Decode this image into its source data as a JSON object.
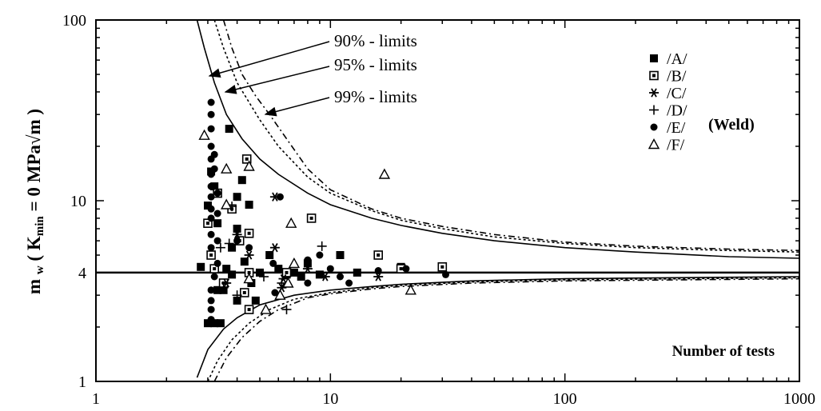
{
  "chart_data": {
    "type": "scatter",
    "xscale": "log",
    "yscale": "log",
    "xlim": [
      1,
      1000
    ],
    "ylim": [
      1,
      100
    ],
    "x_tick_labels": [
      "1",
      "10",
      "100",
      "1000"
    ],
    "y_tick_labels": [
      "1",
      "4",
      "10",
      "100"
    ],
    "y_tick_values": [
      1,
      4,
      10,
      100
    ],
    "x_tick_values": [
      1,
      10,
      100,
      1000
    ],
    "ylabel": "m w ( Kmin = 0 MPa√m )",
    "xlabel_annotation": "Number of tests",
    "group_label": "(Weld)",
    "horizontal_line": 4,
    "limit_labels": [
      "90% - limits",
      "95% - limits",
      "99% - limits"
    ],
    "legend": [
      {
        "label": "/A/",
        "marker": "filled-square"
      },
      {
        "label": "/B/",
        "marker": "square-dot"
      },
      {
        "label": "/C/",
        "marker": "asterisk"
      },
      {
        "label": "/D/",
        "marker": "plus"
      },
      {
        "label": "/E/",
        "marker": "filled-circle"
      },
      {
        "label": "/F/",
        "marker": "open-triangle"
      }
    ],
    "limit_curves": [
      {
        "name": "90%",
        "dash": "solid",
        "upper": [
          [
            2.7,
            100
          ],
          [
            2.9,
            70
          ],
          [
            3.2,
            45
          ],
          [
            3.6,
            30
          ],
          [
            4.2,
            22
          ],
          [
            5,
            17
          ],
          [
            6,
            14
          ],
          [
            8,
            11
          ],
          [
            10,
            9.5
          ],
          [
            15,
            8
          ],
          [
            20,
            7.3
          ],
          [
            30,
            6.6
          ],
          [
            50,
            6.0
          ],
          [
            100,
            5.5
          ],
          [
            200,
            5.2
          ],
          [
            500,
            4.9
          ],
          [
            1000,
            4.8
          ]
        ],
        "lower": [
          [
            2.7,
            1.05
          ],
          [
            3,
            1.5
          ],
          [
            3.5,
            1.95
          ],
          [
            4,
            2.25
          ],
          [
            5,
            2.65
          ],
          [
            7,
            3.0
          ],
          [
            10,
            3.2
          ],
          [
            15,
            3.35
          ],
          [
            20,
            3.45
          ],
          [
            40,
            3.6
          ],
          [
            100,
            3.7
          ],
          [
            1000,
            3.8
          ]
        ]
      },
      {
        "name": "95%",
        "dash": "3,3",
        "upper": [
          [
            3.2,
            100
          ],
          [
            3.5,
            70
          ],
          [
            4,
            45
          ],
          [
            4.5,
            35
          ],
          [
            5,
            28
          ],
          [
            6,
            20
          ],
          [
            8,
            13.5
          ],
          [
            10,
            11
          ],
          [
            15,
            8.8
          ],
          [
            20,
            7.8
          ],
          [
            30,
            7.0
          ],
          [
            50,
            6.3
          ],
          [
            100,
            5.8
          ],
          [
            200,
            5.5
          ],
          [
            500,
            5.3
          ],
          [
            1000,
            5.2
          ]
        ],
        "lower": [
          [
            3.0,
            1.0
          ],
          [
            3.3,
            1.3
          ],
          [
            3.8,
            1.7
          ],
          [
            4.5,
            2.1
          ],
          [
            5.5,
            2.5
          ],
          [
            7,
            2.85
          ],
          [
            10,
            3.1
          ],
          [
            15,
            3.3
          ],
          [
            20,
            3.4
          ],
          [
            40,
            3.55
          ],
          [
            100,
            3.65
          ],
          [
            1000,
            3.75
          ]
        ]
      },
      {
        "name": "99%",
        "dash": "8,4,2,4",
        "upper": [
          [
            3.5,
            100
          ],
          [
            3.8,
            70
          ],
          [
            4.2,
            50
          ],
          [
            4.8,
            38
          ],
          [
            5.5,
            30
          ],
          [
            6.5,
            22
          ],
          [
            8,
            15
          ],
          [
            10,
            11.5
          ],
          [
            15,
            9.0
          ],
          [
            20,
            8.0
          ],
          [
            30,
            7.2
          ],
          [
            50,
            6.5
          ],
          [
            100,
            5.9
          ],
          [
            200,
            5.6
          ],
          [
            500,
            5.4
          ],
          [
            1000,
            5.3
          ]
        ],
        "lower": [
          [
            3.2,
            1.0
          ],
          [
            3.6,
            1.35
          ],
          [
            4.2,
            1.75
          ],
          [
            5,
            2.15
          ],
          [
            6,
            2.5
          ],
          [
            8,
            2.9
          ],
          [
            10,
            3.05
          ],
          [
            15,
            3.25
          ],
          [
            20,
            3.35
          ],
          [
            40,
            3.5
          ],
          [
            100,
            3.6
          ],
          [
            1000,
            3.7
          ]
        ]
      }
    ],
    "series": [
      {
        "name": "/A/",
        "marker": "filled-square",
        "points": [
          [
            2.8,
            4.3
          ],
          [
            3,
            9.4
          ],
          [
            3.1,
            14.5
          ],
          [
            3.2,
            12
          ],
          [
            3.3,
            7.5
          ],
          [
            3,
            2.1
          ],
          [
            3.2,
            2.1
          ],
          [
            3.4,
            2.1
          ],
          [
            3.5,
            3.2
          ],
          [
            3.6,
            4.2
          ],
          [
            3.8,
            5.5
          ],
          [
            3.7,
            25
          ],
          [
            4,
            10.5
          ],
          [
            4,
            7
          ],
          [
            4.3,
            4.6
          ],
          [
            4.5,
            9.5
          ],
          [
            4.2,
            13
          ],
          [
            4.6,
            3.5
          ],
          [
            5,
            4
          ],
          [
            5.5,
            5
          ],
          [
            6,
            4.2
          ],
          [
            6.5,
            3.9
          ],
          [
            7,
            4.0
          ],
          [
            7.5,
            3.8
          ],
          [
            8,
            4.5
          ],
          [
            9,
            3.9
          ],
          [
            11,
            5.0
          ],
          [
            13,
            4.0
          ],
          [
            20,
            4.3
          ],
          [
            3.3,
            3.2
          ],
          [
            4,
            2.8
          ],
          [
            3.8,
            3.9
          ],
          [
            4.8,
            2.8
          ]
        ]
      },
      {
        "name": "/B/",
        "marker": "square-dot",
        "points": [
          [
            3,
            7.5
          ],
          [
            3.1,
            5
          ],
          [
            3.3,
            11
          ],
          [
            3.5,
            3.5
          ],
          [
            3.8,
            9
          ],
          [
            4.1,
            6
          ],
          [
            4.3,
            3.1
          ],
          [
            4.4,
            17
          ],
          [
            4.5,
            6.6
          ],
          [
            4.5,
            2.5
          ],
          [
            6.5,
            4
          ],
          [
            8.3,
            8
          ],
          [
            16,
            5
          ],
          [
            20,
            4.2
          ],
          [
            30,
            4.3
          ],
          [
            3.2,
            4.2
          ],
          [
            4.5,
            4.0
          ]
        ]
      },
      {
        "name": "/C/",
        "marker": "asterisk",
        "points": [
          [
            4,
            6.5
          ],
          [
            4.5,
            5
          ],
          [
            5.8,
            5.5
          ],
          [
            5.8,
            10.5
          ],
          [
            6.2,
            3.3
          ],
          [
            6.3,
            3.7
          ],
          [
            8,
            4.2
          ],
          [
            9.5,
            3.8
          ],
          [
            16,
            3.8
          ],
          [
            3.6,
            3.5
          ]
        ]
      },
      {
        "name": "/D/",
        "marker": "plus",
        "points": [
          [
            3.4,
            5.5
          ],
          [
            3.7,
            5.8
          ],
          [
            3.8,
            9.3
          ],
          [
            4.0,
            3.0
          ],
          [
            5.2,
            3.8
          ],
          [
            6.2,
            3.5
          ],
          [
            6.5,
            2.5
          ],
          [
            9.2,
            5.6
          ],
          [
            3.5,
            3.3
          ]
        ]
      },
      {
        "name": "/E/",
        "marker": "filled-circle",
        "points": [
          [
            3.1,
            35
          ],
          [
            3.1,
            30
          ],
          [
            3.1,
            25
          ],
          [
            3.1,
            20
          ],
          [
            3.1,
            17
          ],
          [
            3.1,
            14
          ],
          [
            3.1,
            12
          ],
          [
            3.1,
            10.5
          ],
          [
            3.1,
            9
          ],
          [
            3.1,
            8
          ],
          [
            3.1,
            6.5
          ],
          [
            3.1,
            5.5
          ],
          [
            3.1,
            3.2
          ],
          [
            3.1,
            2.8
          ],
          [
            3.1,
            2.5
          ],
          [
            3.1,
            2.2
          ],
          [
            3.2,
            18
          ],
          [
            3.2,
            15
          ],
          [
            3.3,
            11
          ],
          [
            3.3,
            8.5
          ],
          [
            3.3,
            6
          ],
          [
            3.3,
            4.5
          ],
          [
            3.2,
            3.8
          ],
          [
            4,
            6
          ],
          [
            4.5,
            5.5
          ],
          [
            5.7,
            4.5
          ],
          [
            5.8,
            3.1
          ],
          [
            6.1,
            10.5
          ],
          [
            8,
            4.7
          ],
          [
            8,
            3.5
          ],
          [
            9,
            5
          ],
          [
            10,
            4.2
          ],
          [
            11,
            3.8
          ],
          [
            12,
            3.5
          ],
          [
            16,
            4.1
          ],
          [
            21,
            4.2
          ],
          [
            31,
            3.9
          ]
        ]
      },
      {
        "name": "/F/",
        "marker": "open-triangle",
        "points": [
          [
            2.9,
            23
          ],
          [
            3.6,
            15
          ],
          [
            4.5,
            15.5
          ],
          [
            6.8,
            7.5
          ],
          [
            7,
            4.5
          ],
          [
            6.1,
            3
          ],
          [
            4.5,
            3.7
          ],
          [
            5.3,
            2.5
          ],
          [
            6.6,
            3.5
          ],
          [
            17,
            14
          ],
          [
            22,
            3.2
          ],
          [
            3.6,
            9.5
          ]
        ]
      }
    ]
  }
}
